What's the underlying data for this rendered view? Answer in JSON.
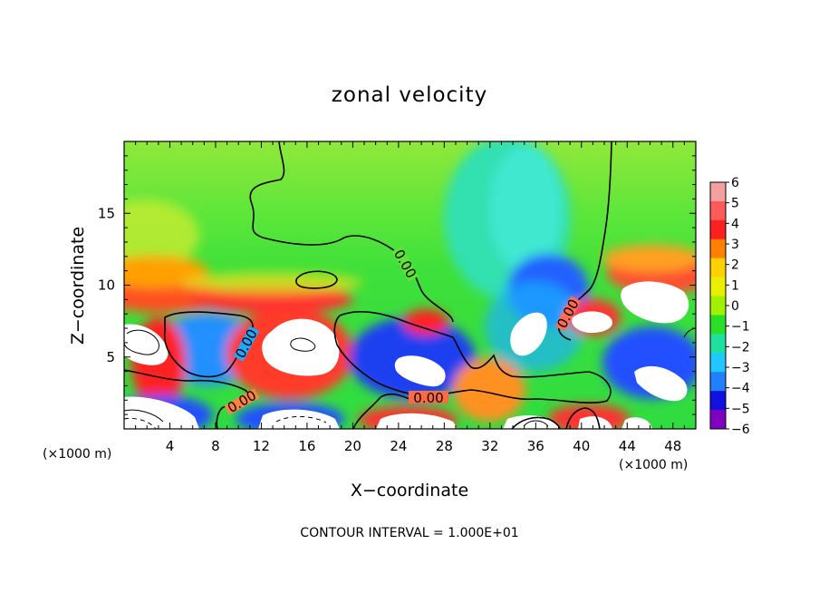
{
  "chart_data": {
    "type": "heatmap",
    "title": "zonal velocity",
    "xlabel": "X−coordinate",
    "ylabel": "Z−coordinate",
    "x_unit_left": "(×1000 m)",
    "x_unit_right": "(×1000 m)",
    "xlim": [
      0,
      50
    ],
    "ylim": [
      0,
      20
    ],
    "xticks": [
      "4",
      "8",
      "12",
      "16",
      "20",
      "24",
      "28",
      "32",
      "36",
      "40",
      "44",
      "48"
    ],
    "yticks": [
      "5",
      "10",
      "15"
    ],
    "colorbar": {
      "labels": [
        "6",
        "5",
        "4",
        "3",
        "2",
        "1",
        "0",
        "−1",
        "−2",
        "−3",
        "−4",
        "−5",
        "−6"
      ],
      "colors": [
        "#f4a0a0",
        "#ff5a5a",
        "#ff2020",
        "#ff8000",
        "#ffd000",
        "#e8f000",
        "#a0f000",
        "#28e028",
        "#20e0a0",
        "#20c8ff",
        "#2080ff",
        "#1010e0",
        "#8000c0"
      ]
    },
    "contour_labels": [
      "0.00",
      "0.00",
      "0.00",
      "0.00",
      "0.00"
    ],
    "footer": "CONTOUR INTERVAL = 1.000E+01"
  }
}
